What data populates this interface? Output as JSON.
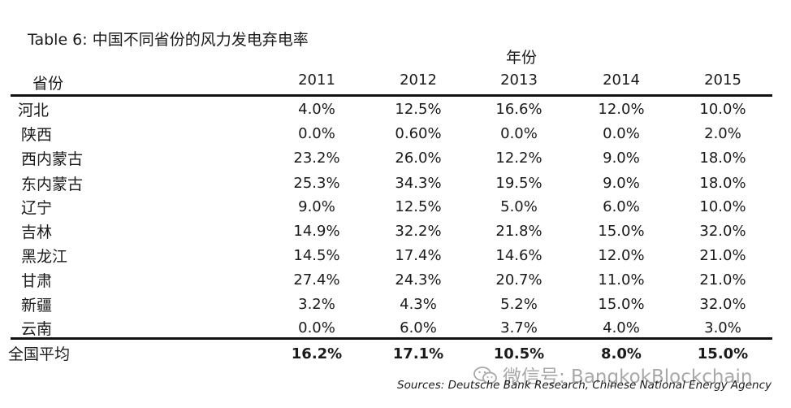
{
  "title": "Table 6: 中国不同省份的风力发电弃电率",
  "group_header": "年份",
  "row_header": "省份",
  "years": [
    "2011",
    "2012",
    "2013",
    "2014",
    "2015"
  ],
  "rows": [
    {
      "label": "河北",
      "values": [
        "4.0%",
        "12.5%",
        "16.6%",
        "12.0%",
        "10.0%"
      ]
    },
    {
      "label": "陕西",
      "values": [
        "0.0%",
        "0.60%",
        "0.0%",
        "0.0%",
        "2.0%"
      ]
    },
    {
      "label": "西内蒙古",
      "values": [
        "23.2%",
        "26.0%",
        "12.2%",
        "9.0%",
        "18.0%"
      ]
    },
    {
      "label": "东内蒙古",
      "values": [
        "25.3%",
        "34.3%",
        "19.5%",
        "9.0%",
        "18.0%"
      ]
    },
    {
      "label": "辽宁",
      "values": [
        "9.0%",
        "12.5%",
        "5.0%",
        "6.0%",
        "10.0%"
      ]
    },
    {
      "label": "吉林",
      "values": [
        "14.9%",
        "32.2%",
        "21.8%",
        "15.0%",
        "32.0%"
      ]
    },
    {
      "label": "黑龙江",
      "values": [
        "14.5%",
        "17.4%",
        "14.6%",
        "12.0%",
        "21.0%"
      ]
    },
    {
      "label": "甘肃",
      "values": [
        "27.4%",
        "24.3%",
        "20.7%",
        "11.0%",
        "21.0%"
      ]
    },
    {
      "label": "新疆",
      "values": [
        "3.2%",
        "4.3%",
        "5.2%",
        "15.0%",
        "32.0%"
      ]
    },
    {
      "label": "云南",
      "values": [
        "0.0%",
        "6.0%",
        "3.7%",
        "4.0%",
        "3.0%"
      ]
    }
  ],
  "average": {
    "label": "全国平均",
    "values": [
      "16.2%",
      "17.1%",
      "10.5%",
      "8.0%",
      "15.0%"
    ]
  },
  "watermark": "微信号: BangkokBlockchain",
  "source": "Sources: Deutsche Bank Research, Chinese National Energy Agency"
}
